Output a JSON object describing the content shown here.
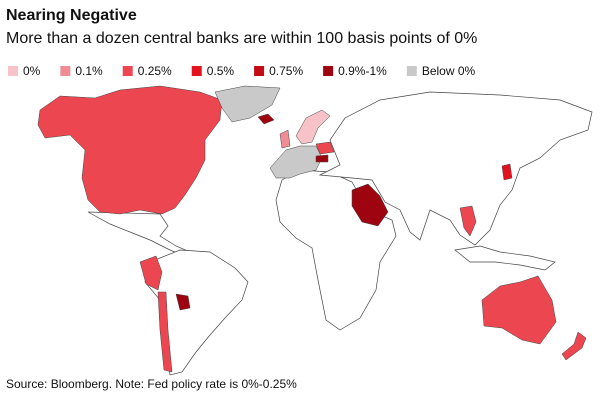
{
  "title": "Nearing Negative",
  "subtitle": "More than a dozen central banks are within 100 basis points of 0%",
  "legend": [
    {
      "label": "0%",
      "color": "#f7c3c8"
    },
    {
      "label": "0.1%",
      "color": "#f08c94"
    },
    {
      "label": "0.25%",
      "color": "#ec4651"
    },
    {
      "label": "0.5%",
      "color": "#e3131e"
    },
    {
      "label": "0.75%",
      "color": "#c30b16"
    },
    {
      "label": "0.9%-1%",
      "color": "#9e0410"
    },
    {
      "label": "Below 0%",
      "color": "#c9c9c9"
    }
  ],
  "source": "Source: Bloomberg. Note: Fed policy rate is 0%-0.25%"
}
